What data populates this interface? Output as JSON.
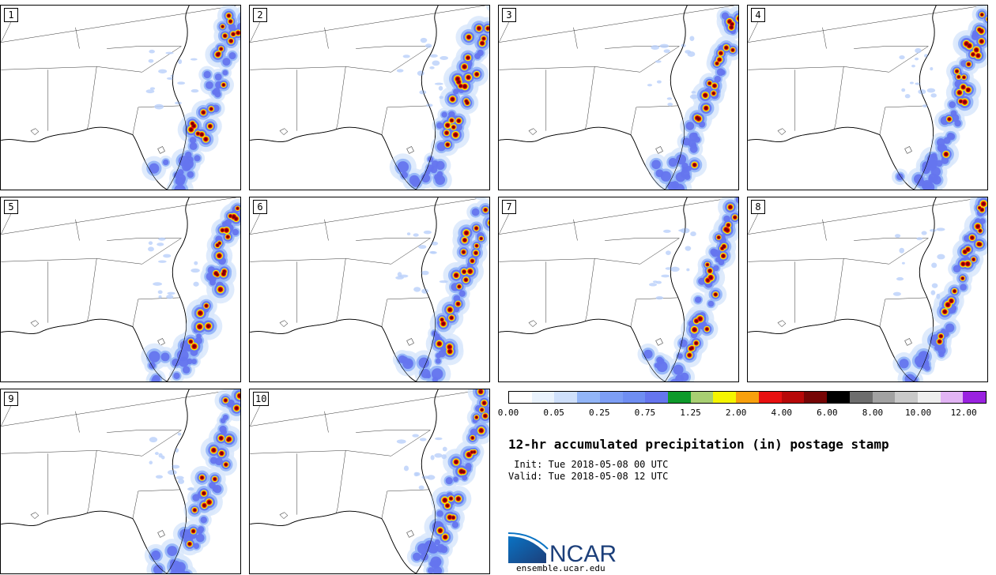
{
  "panels": [
    {
      "label": "1"
    },
    {
      "label": "2"
    },
    {
      "label": "3"
    },
    {
      "label": "4"
    },
    {
      "label": "5"
    },
    {
      "label": "6"
    },
    {
      "label": "7"
    },
    {
      "label": "8"
    },
    {
      "label": "9"
    },
    {
      "label": "10"
    }
  ],
  "colorbar": {
    "colors": [
      "#ffffff",
      "#eaf3fd",
      "#cfe0fb",
      "#92b5f7",
      "#7d9ef5",
      "#6f8ef2",
      "#6575ee",
      "#0e9a2b",
      "#a8cf72",
      "#f5f500",
      "#f8a00d",
      "#e81010",
      "#b70808",
      "#760505",
      "#000000",
      "#6d6d6d",
      "#a2a2a2",
      "#c9c9c9",
      "#eeeeee",
      "#e2b4f4",
      "#9a22e0"
    ],
    "tick_labels": [
      "0.00",
      "0.05",
      "0.25",
      "0.75",
      "1.25",
      "2.00",
      "4.00",
      "6.00",
      "8.00",
      "10.00",
      "12.00"
    ]
  },
  "title": "12-hr accumulated precipitation (in) postage stamp",
  "init_text": " Init: Tue 2018-05-08 00 UTC",
  "valid_text": "Valid: Tue 2018-05-08 12 UTC",
  "logo": {
    "text": "NCAR",
    "url": "ensemble.ucar.edu",
    "icon": "ncar-logo-icon"
  }
}
